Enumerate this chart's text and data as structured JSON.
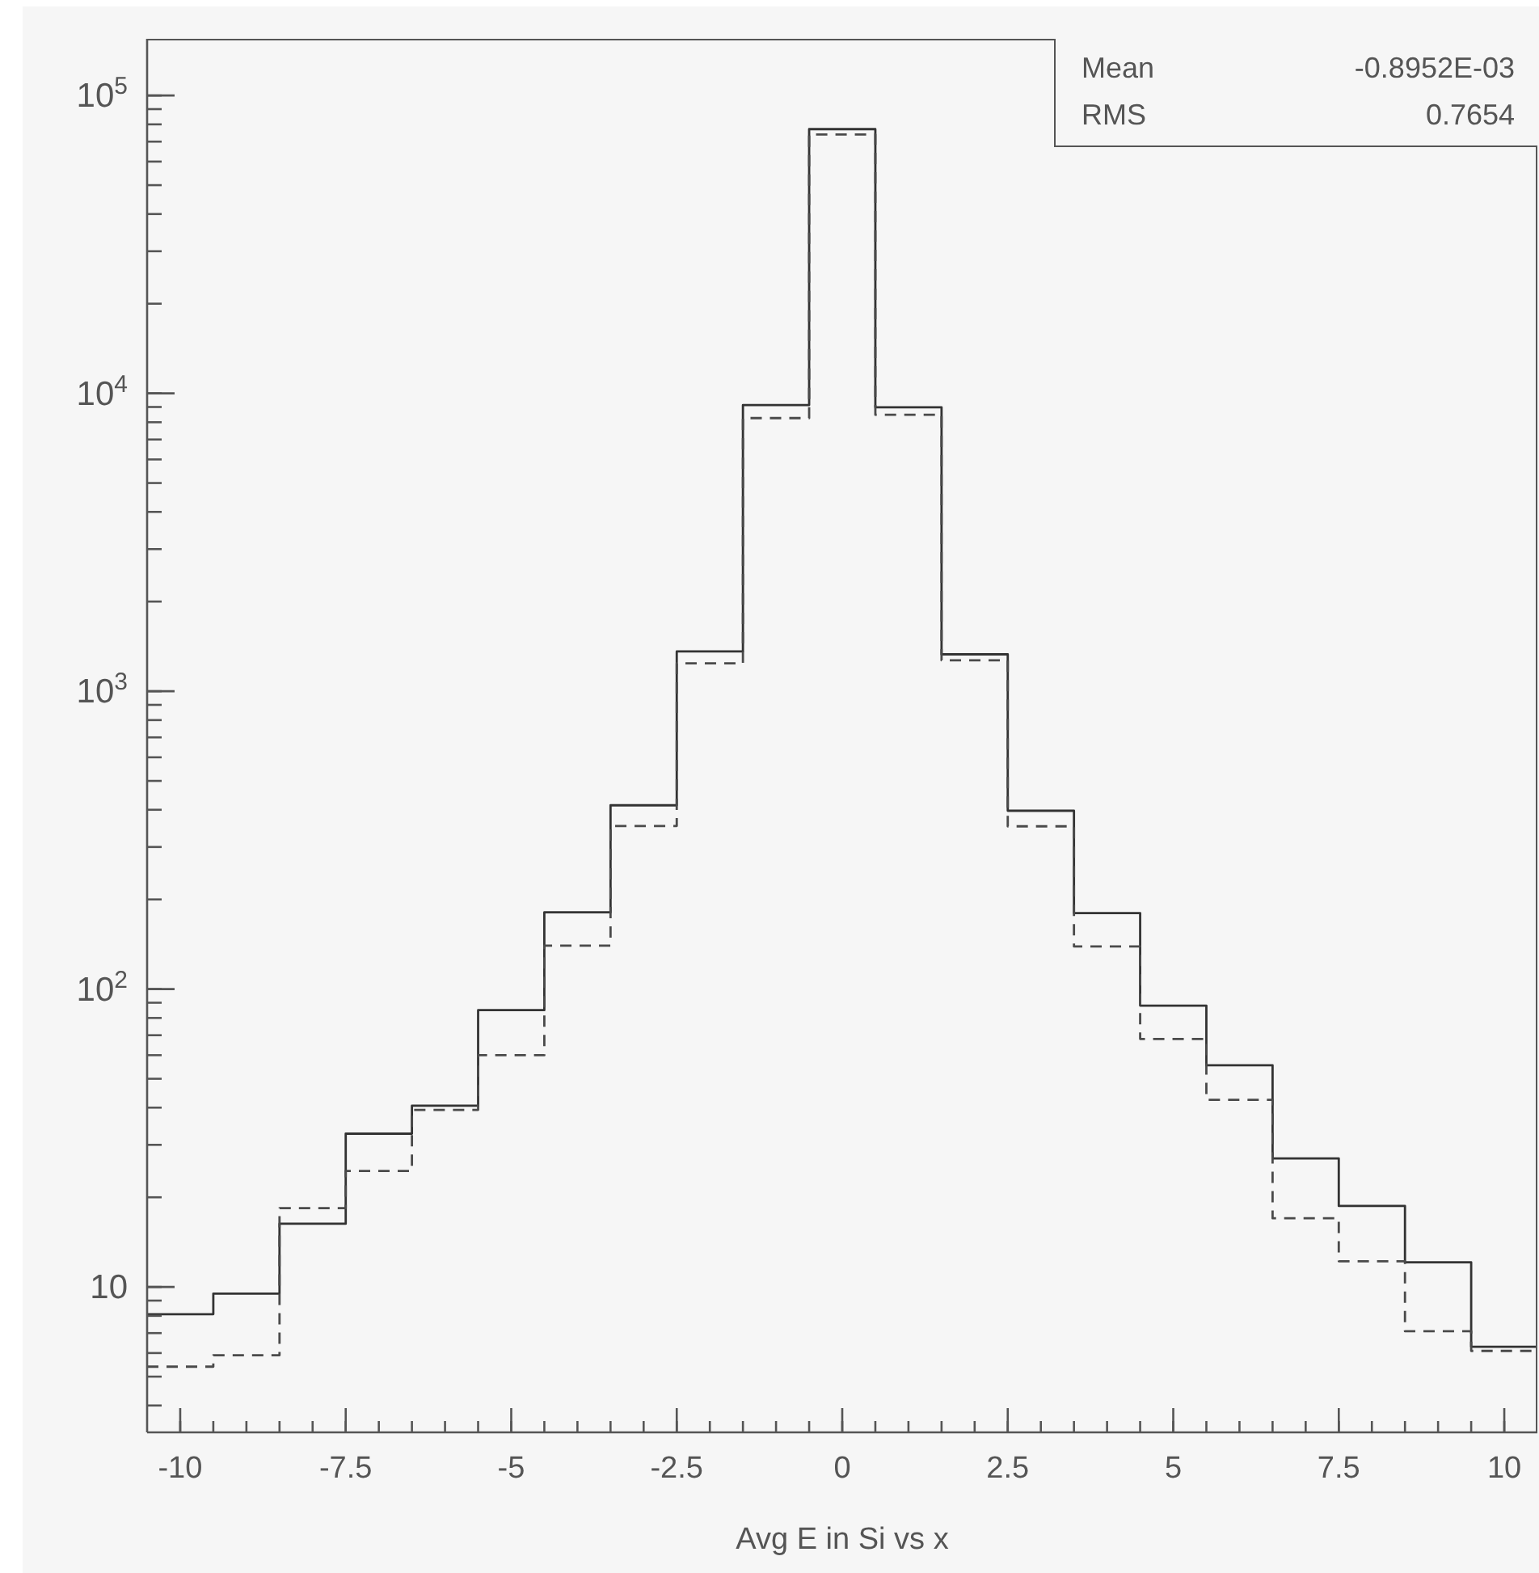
{
  "chart_data": {
    "type": "histogram",
    "xlabel": "Avg E in Si vs x",
    "log": "y",
    "annotations": [
      "Mean",
      "-0.8952E-03",
      "RMS",
      "0.7654"
    ],
    "bins": [
      -10.5,
      -9.5,
      -8.5,
      -7.5,
      -6.5,
      -5.5,
      -4.5,
      -3.5,
      -2.5,
      -1.5,
      -0.5,
      0.5,
      1.5,
      2.5,
      3.5,
      4.5,
      5.5,
      6.5,
      7.5,
      8.5,
      9.5,
      10.5
    ],
    "series": [
      {
        "color": "#333333",
        "line_style": "solid",
        "values": [
          8.1,
          9.5,
          16.3,
          32.7,
          40.6,
          85,
          181,
          414,
          1360,
          9140,
          77100,
          8980,
          1330,
          397,
          180,
          88,
          55.5,
          27,
          18.7,
          12.1,
          6.3
        ]
      },
      {
        "color": "#4a4a4a",
        "line_style": "dashed",
        "values": [
          5.4,
          5.9,
          18.4,
          24.5,
          39.3,
          60,
          140,
          353,
          1240,
          8260,
          74000,
          8470,
          1270,
          352,
          139,
          68,
          42.5,
          17,
          12.2,
          7.1,
          6.1
        ]
      }
    ],
    "xlim": [
      -10.5,
      10.5
    ],
    "xticks": [
      -10,
      {
        "value": -9.5,
        "label": null
      },
      {
        "value": -9,
        "label": null
      },
      {
        "value": -8.5,
        "label": null
      },
      {
        "value": -8,
        "label": null
      },
      -7.5,
      {
        "value": -7,
        "label": null
      },
      {
        "value": -6.5,
        "label": null
      },
      {
        "value": -6,
        "label": null
      },
      {
        "value": -5.5,
        "label": null
      },
      -5,
      {
        "value": -4.5,
        "label": null
      },
      {
        "value": -4,
        "label": null
      },
      {
        "value": -3.5,
        "label": null
      },
      {
        "value": -3,
        "label": null
      },
      -2.5,
      {
        "value": -2,
        "label": null
      },
      {
        "value": -1.5,
        "label": null
      },
      {
        "value": -1,
        "label": null
      },
      {
        "value": -0.5,
        "label": null
      },
      0,
      {
        "value": 0.5,
        "label": null
      },
      {
        "value": 1,
        "label": null
      },
      {
        "value": 1.5,
        "label": null
      },
      {
        "value": 2,
        "label": null
      },
      2.5,
      {
        "value": 3,
        "label": null
      },
      {
        "value": 3.5,
        "label": null
      },
      {
        "value": 4,
        "label": null
      },
      {
        "value": 4.5,
        "label": null
      },
      5,
      {
        "value": 5.5,
        "label": null
      },
      {
        "value": 6,
        "label": null
      },
      {
        "value": 6.5,
        "label": null
      },
      {
        "value": 7,
        "label": null
      },
      7.5,
      {
        "value": 8,
        "label": null
      },
      {
        "value": 8.5,
        "label": null
      },
      {
        "value": 9,
        "label": null
      },
      {
        "value": 9.5,
        "label": null
      },
      10
    ],
    "ylim": [
      3.25,
      155000
    ],
    "yticks": [
      {
        "value": 4,
        "label": null
      },
      {
        "value": 5,
        "label": null
      },
      {
        "value": 6,
        "label": null
      },
      {
        "value": 7,
        "label": null
      },
      {
        "value": 8,
        "label": null
      },
      {
        "value": 9,
        "label": null
      },
      10,
      {
        "value": 20,
        "label": null
      },
      {
        "value": 30,
        "label": null
      },
      {
        "value": 40,
        "label": null
      },
      {
        "value": 50,
        "label": null
      },
      {
        "value": 60,
        "label": null
      },
      {
        "value": 70,
        "label": null
      },
      {
        "value": 80,
        "label": null
      },
      {
        "value": 90,
        "label": null
      },
      {
        "value": 100,
        "label": "10$^{2}$"
      },
      {
        "value": 200,
        "label": null
      },
      {
        "value": 300,
        "label": null
      },
      {
        "value": 400,
        "label": null
      },
      {
        "value": 500,
        "label": null
      },
      {
        "value": 600,
        "label": null
      },
      {
        "value": 700,
        "label": null
      },
      {
        "value": 800,
        "label": null
      },
      {
        "value": 900,
        "label": null
      },
      {
        "value": 1000,
        "label": "10$^{3}$"
      },
      {
        "value": 2000,
        "label": null
      },
      {
        "value": 3000,
        "label": null
      },
      {
        "value": 4000,
        "label": null
      },
      {
        "value": 5000,
        "label": null
      },
      {
        "value": 6000,
        "label": null
      },
      {
        "value": 7000,
        "label": null
      },
      {
        "value": 8000,
        "label": null
      },
      {
        "value": 9000,
        "label": null
      },
      {
        "value": 10000,
        "label": "10$^{4}$"
      },
      {
        "value": 20000,
        "label": null
      },
      {
        "value": 30000,
        "label": null
      },
      {
        "value": 40000,
        "label": null
      },
      {
        "value": 50000,
        "label": null
      },
      {
        "value": 60000,
        "label": null
      },
      {
        "value": 70000,
        "label": null
      },
      {
        "value": 80000,
        "label": null
      },
      {
        "value": 90000,
        "label": null
      },
      {
        "value": 100000,
        "label": "10$^{5}$"
      }
    ]
  }
}
